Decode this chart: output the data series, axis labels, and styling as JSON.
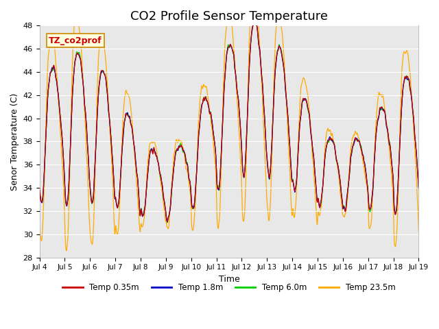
{
  "title": "CO2 Profile Sensor Temperature",
  "ylabel": "Senor Temperature (C)",
  "xlabel": "Time",
  "ylim": [
    28,
    48
  ],
  "yticks": [
    28,
    30,
    32,
    34,
    36,
    38,
    40,
    42,
    44,
    46,
    48
  ],
  "xtick_labels": [
    "Jul 4",
    "Jul 5",
    "Jul 6",
    "Jul 7",
    "Jul 8",
    "Jul 9",
    "Jul 10",
    "Jul 11",
    "Jul 12",
    "Jul 13",
    "Jul 14",
    "Jul 15",
    "Jul 16",
    "Jul 17",
    "Jul 18",
    "Jul 19"
  ],
  "line_colors": [
    "#cc0000",
    "#0000cc",
    "#00cc00",
    "#ffaa00"
  ],
  "line_labels": [
    "Temp 0.35m",
    "Temp 1.8m",
    "Temp 6.0m",
    "Temp 23.5m"
  ],
  "annotation_text": "TZ_co2prof",
  "annotation_color": "#cc0000",
  "annotation_bg": "#ffffdd",
  "annotation_border": "#cc8800",
  "bg_color": "#e8e8e8",
  "fig_bg": "#ffffff",
  "grid_color": "#ffffff",
  "title_fontsize": 13
}
